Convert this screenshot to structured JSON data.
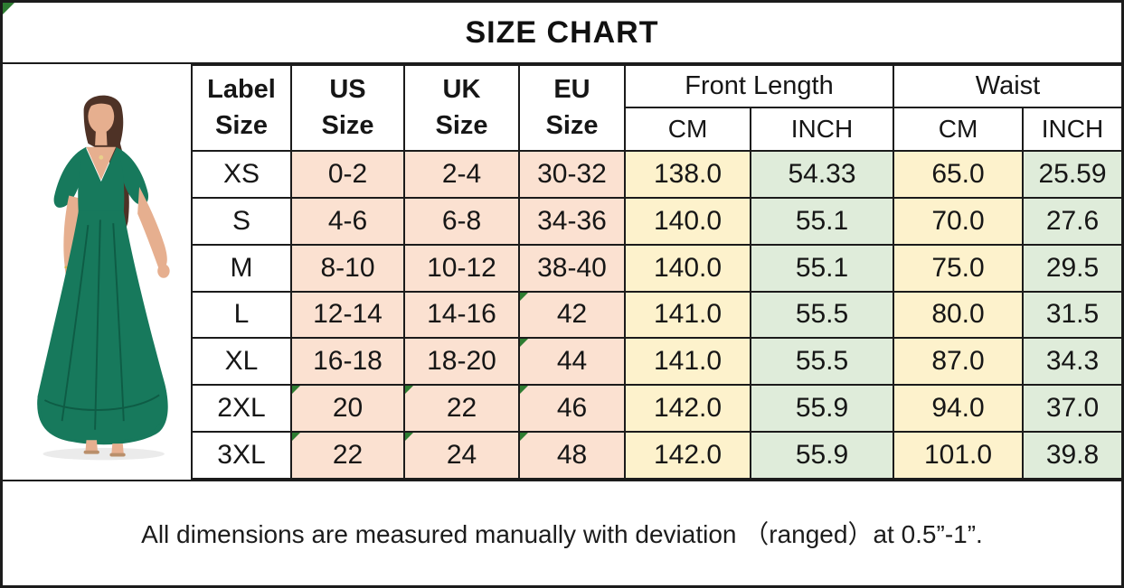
{
  "title": "SIZE CHART",
  "footer_note": "All dimensions are measured manually with deviation （ranged）at 0.5”-1”.",
  "photo": {
    "description": "model wearing green flutter-sleeve v-neck maxi dress",
    "dress_color": "#17795C"
  },
  "colors": {
    "border": "#1B1B1B",
    "peach": "#FBE1D1",
    "yellow": "#FDF2CC",
    "green": "#DFECDA",
    "flag": "#2E7D32"
  },
  "table": {
    "col_groups": [
      {
        "lines": [
          "Label",
          "Size"
        ]
      },
      {
        "lines": [
          "US",
          "Size"
        ]
      },
      {
        "lines": [
          "UK",
          "Size"
        ]
      },
      {
        "lines": [
          "EU",
          "Size"
        ]
      },
      {
        "label": "Front Length",
        "sub": [
          "CM",
          "INCH"
        ]
      },
      {
        "label": "Waist",
        "sub": [
          "CM",
          "INCH"
        ]
      }
    ],
    "rows": [
      [
        "XS",
        "0-2",
        "2-4",
        "30-32",
        "138.0",
        "54.33",
        "65.0",
        "25.59"
      ],
      [
        "S",
        "4-6",
        "6-8",
        "34-36",
        "140.0",
        "55.1",
        "70.0",
        "27.6"
      ],
      [
        "M",
        "8-10",
        "10-12",
        "38-40",
        "140.0",
        "55.1",
        "75.0",
        "29.5"
      ],
      [
        "L",
        "12-14",
        "14-16",
        "42",
        "141.0",
        "55.5",
        "80.0",
        "31.5"
      ],
      [
        "XL",
        "16-18",
        "18-20",
        "44",
        "141.0",
        "55.5",
        "87.0",
        "34.3"
      ],
      [
        "2XL",
        "20",
        "22",
        "46",
        "142.0",
        "55.9",
        "94.0",
        "37.0"
      ],
      [
        "3XL",
        "22",
        "24",
        "48",
        "142.0",
        "55.9",
        "101.0",
        "39.8"
      ]
    ],
    "flagged_cells": [
      [
        3,
        3
      ],
      [
        4,
        3
      ],
      [
        5,
        1
      ],
      [
        5,
        2
      ],
      [
        5,
        3
      ],
      [
        6,
        1
      ],
      [
        6,
        2
      ],
      [
        6,
        3
      ]
    ],
    "sheet_corner_flag": true
  }
}
